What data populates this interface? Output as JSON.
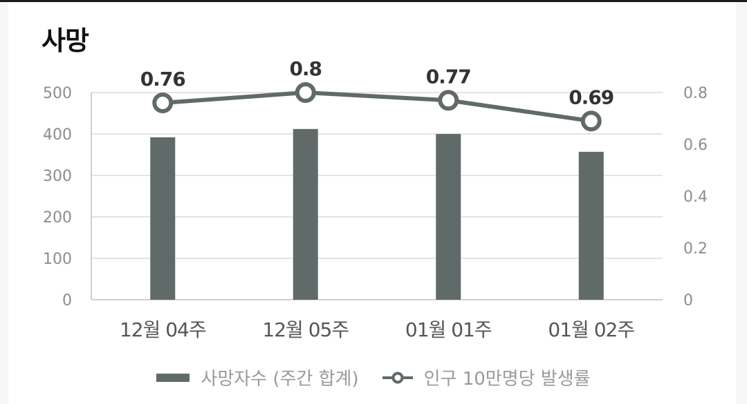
{
  "title": "사망",
  "chart_data": {
    "type": "bar+line",
    "categories": [
      "12월 04주",
      "12월 05주",
      "01월 01주",
      "01월 02주"
    ],
    "series": [
      {
        "name": "사망자수 (주간 합계)",
        "type": "bar",
        "axis": "left",
        "values": [
          392,
          412,
          400,
          357
        ]
      },
      {
        "name": "인구 10만명당 발생률",
        "type": "line",
        "axis": "right",
        "values": [
          0.76,
          0.8,
          0.77,
          0.69
        ],
        "labels": [
          "0.76",
          "0.8",
          "0.77",
          "0.69"
        ]
      }
    ],
    "y_left": {
      "ylim": [
        0,
        500
      ],
      "ticks": [
        "0",
        "100",
        "200",
        "300",
        "400",
        "500"
      ]
    },
    "y_right": {
      "ylim": [
        0,
        0.8
      ],
      "ticks": [
        "0",
        "0.2",
        "0.4",
        "0.6",
        "0.8"
      ]
    },
    "grid": true,
    "legend_position": "bottom",
    "colors": {
      "bar": "#606a69",
      "line": "#606a69",
      "marker_fill": "#ffffff"
    }
  }
}
